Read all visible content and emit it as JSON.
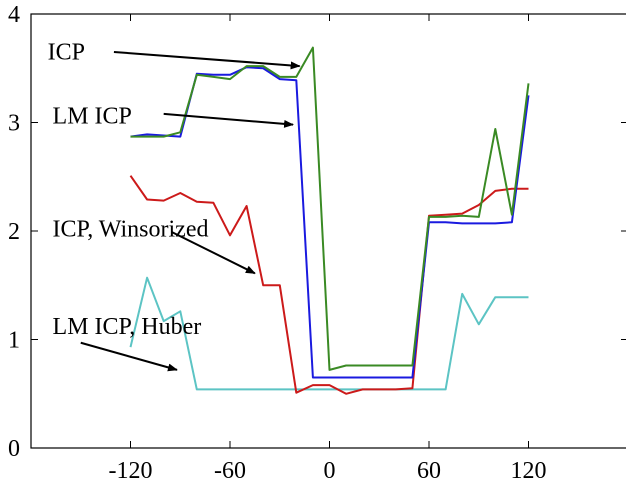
{
  "chart_data": {
    "type": "line",
    "title": "",
    "xlabel": "",
    "ylabel": "",
    "xlim": [
      -180,
      180
    ],
    "ylim": [
      0,
      4
    ],
    "grid": false,
    "x_ticks": [
      -120,
      -60,
      0,
      60,
      120
    ],
    "y_ticks": [
      0,
      1,
      2,
      3,
      4
    ],
    "x_tick_labels": [
      "-120",
      "-60",
      "0",
      "60",
      "120"
    ],
    "y_tick_labels": [
      "0",
      "1",
      "2",
      "3",
      "4"
    ],
    "series": [
      {
        "name": "ICP",
        "color": "#3a8a24",
        "x": [
          -120,
          -110,
          -100,
          -90,
          -80,
          -70,
          -60,
          -50,
          -40,
          -30,
          -20,
          -10,
          0,
          10,
          20,
          30,
          40,
          50,
          60,
          70,
          80,
          90,
          100,
          110,
          120
        ],
        "y": [
          2.87,
          2.87,
          2.87,
          2.91,
          3.44,
          3.42,
          3.4,
          3.52,
          3.52,
          3.42,
          3.42,
          3.69,
          0.72,
          0.76,
          0.76,
          0.76,
          0.76,
          0.76,
          2.13,
          2.13,
          2.14,
          2.13,
          2.94,
          2.15,
          3.36
        ]
      },
      {
        "name": "LM ICP",
        "color": "#1a1adf",
        "x": [
          -120,
          -110,
          -100,
          -90,
          -80,
          -70,
          -60,
          -50,
          -40,
          -30,
          -20,
          -10,
          0,
          10,
          20,
          30,
          40,
          50,
          60,
          70,
          80,
          90,
          100,
          110,
          120
        ],
        "y": [
          2.87,
          2.89,
          2.88,
          2.87,
          3.45,
          3.44,
          3.44,
          3.51,
          3.5,
          3.4,
          3.39,
          0.65,
          0.65,
          0.65,
          0.65,
          0.65,
          0.65,
          0.65,
          2.08,
          2.08,
          2.07,
          2.07,
          2.07,
          2.08,
          3.25
        ]
      },
      {
        "name": "ICP, Winsorized",
        "color": "#cc1a1a",
        "x": [
          -120,
          -110,
          -100,
          -90,
          -80,
          -70,
          -60,
          -50,
          -40,
          -30,
          -20,
          -10,
          0,
          10,
          20,
          30,
          40,
          50,
          60,
          70,
          80,
          90,
          100,
          110,
          120
        ],
        "y": [
          2.51,
          2.29,
          2.28,
          2.35,
          2.27,
          2.26,
          1.96,
          2.23,
          1.5,
          1.5,
          0.51,
          0.58,
          0.58,
          0.5,
          0.54,
          0.54,
          0.54,
          0.55,
          2.14,
          2.15,
          2.16,
          2.24,
          2.37,
          2.39,
          2.39
        ]
      },
      {
        "name": "LM ICP, Huber",
        "color": "#5cc4c4",
        "x": [
          -120,
          -110,
          -100,
          -90,
          -80,
          -70,
          -60,
          -50,
          -40,
          -30,
          -20,
          -10,
          0,
          10,
          20,
          30,
          40,
          50,
          60,
          70,
          80,
          90,
          100,
          110,
          120
        ],
        "y": [
          0.93,
          1.57,
          1.17,
          1.26,
          0.54,
          0.54,
          0.54,
          0.54,
          0.54,
          0.54,
          0.54,
          0.54,
          0.54,
          0.54,
          0.54,
          0.54,
          0.54,
          0.54,
          0.54,
          0.54,
          1.42,
          1.14,
          1.39,
          1.39,
          1.39
        ]
      }
    ],
    "annotations": [
      {
        "text": "ICP",
        "text_x": -170,
        "text_y": 3.58,
        "arrow_from": [
          -130,
          3.65
        ],
        "arrow_to": [
          -18,
          3.52
        ]
      },
      {
        "text": "LM ICP",
        "text_x": -167,
        "text_y": 2.99,
        "arrow_from": [
          -100,
          3.08
        ],
        "arrow_to": [
          -22,
          2.98
        ]
      },
      {
        "text": "ICP, Winsorized",
        "text_x": -167,
        "text_y": 1.95,
        "arrow_from": [
          -95,
          1.99
        ],
        "arrow_to": [
          -45,
          1.61
        ]
      },
      {
        "text": "LM ICP, Huber",
        "text_x": -167,
        "text_y": 1.05,
        "arrow_from": [
          -150,
          0.97
        ],
        "arrow_to": [
          -92,
          0.72
        ]
      }
    ]
  }
}
